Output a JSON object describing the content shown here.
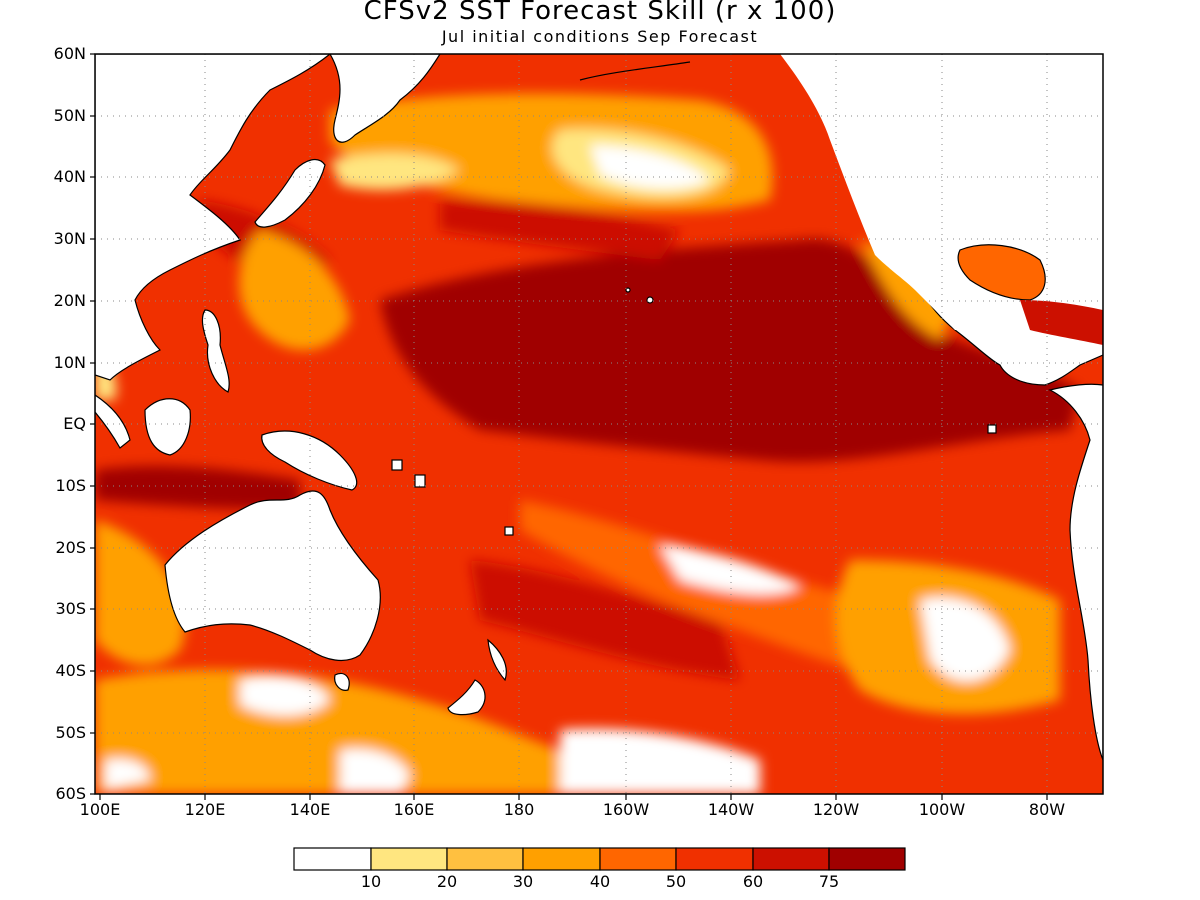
{
  "title": "CFSv2 SST Forecast Skill (r x 100)",
  "subtitle": "Jul initial conditions  Sep Forecast",
  "lat_labels": [
    "60N",
    "50N",
    "40N",
    "30N",
    "20N",
    "10N",
    "EQ",
    "10S",
    "20S",
    "30S",
    "40S",
    "50S",
    "60S"
  ],
  "lon_labels": [
    "100E",
    "120E",
    "140E",
    "160E",
    "180",
    "160W",
    "140W",
    "120W",
    "100W",
    "80W"
  ],
  "colorbar": {
    "colors": [
      "#ffffff",
      "#ffe680",
      "#ffc040",
      "#ffa000",
      "#ff6600",
      "#f03000",
      "#cc1000",
      "#a00000"
    ],
    "labels": [
      "10",
      "20",
      "30",
      "40",
      "50",
      "60",
      "75"
    ]
  },
  "map": {
    "extent": {
      "lon_min": 100,
      "lon_max": 290,
      "lat_min": -60,
      "lat_max": 60
    },
    "grid": "dotted",
    "colors": {
      "land": "#ffffff",
      "coastline": "#000000",
      "ocean_base": "#f03000"
    }
  }
}
